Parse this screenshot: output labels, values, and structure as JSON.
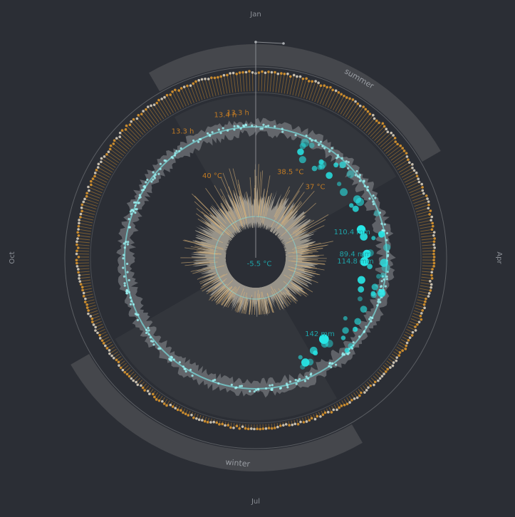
{
  "chart_data": {
    "type": "radial-weather",
    "title": "",
    "months": [
      {
        "name": "Jan",
        "angle_deg": 0
      },
      {
        "name": "Apr",
        "angle_deg": 90
      },
      {
        "name": "Jul",
        "angle_deg": 180
      },
      {
        "name": "Oct",
        "angle_deg": 270
      }
    ],
    "seasons": [
      {
        "name": "summer",
        "start_deg": -30,
        "end_deg": 60,
        "label_deg": 30
      },
      {
        "name": "winter",
        "start_deg": 150,
        "end_deg": 240,
        "label_deg": 185
      }
    ],
    "series": [
      {
        "name": "daylight_hours",
        "unit": "h",
        "range": [
          9.5,
          14.5
        ],
        "color": "#e39a2d"
      },
      {
        "name": "rainfall",
        "unit": "mm",
        "range": [
          0,
          150
        ],
        "color": "#27e6e6"
      },
      {
        "name": "temperature",
        "unit": "°C",
        "range": [
          -5,
          40
        ],
        "color": "#e0b77a"
      }
    ],
    "annotations": [
      {
        "id": "daylight-max-a",
        "text": "13.4 h",
        "series": "daylight_hours",
        "angle_deg": -12
      },
      {
        "id": "daylight-max-b",
        "text": "13.3 h",
        "series": "daylight_hours",
        "angle_deg": -7
      },
      {
        "id": "daylight-max-c",
        "text": "13.3 h",
        "series": "daylight_hours",
        "angle_deg": -30
      },
      {
        "id": "temp-max-a",
        "text": "40 °C",
        "series": "temperature",
        "angle_deg": -28
      },
      {
        "id": "temp-max-b",
        "text": "38.5 °C",
        "series": "temperature",
        "angle_deg": 22
      },
      {
        "id": "temp-max-c",
        "text": "37 °C",
        "series": "temperature",
        "angle_deg": 40
      },
      {
        "id": "temp-min",
        "text": "-5.5 °C",
        "series": "temperature",
        "angle_deg": 150
      },
      {
        "id": "rain-a",
        "text": "110.4 mm",
        "series": "rainfall",
        "angle_deg": 75
      },
      {
        "id": "rain-b",
        "text": "89.4 mm",
        "series": "rainfall",
        "angle_deg": 88
      },
      {
        "id": "rain-c",
        "text": "114.8 mm",
        "series": "rainfall",
        "angle_deg": 92
      },
      {
        "id": "rain-d",
        "text": "142 mm",
        "series": "rainfall",
        "angle_deg": 140
      }
    ]
  }
}
